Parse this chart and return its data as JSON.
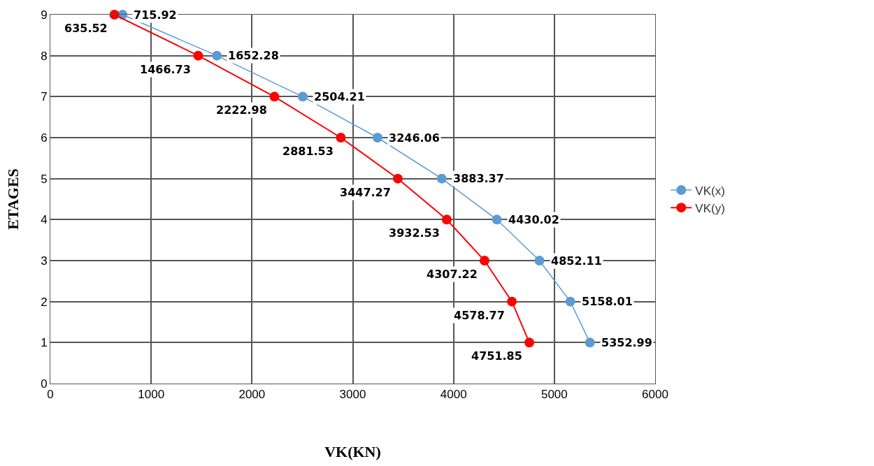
{
  "chart_data": {
    "type": "line",
    "orientation": "horizontal",
    "xlabel": "VK(KN)",
    "ylabel": "ETAGES",
    "categories": [
      "9",
      "8",
      "7",
      "6",
      "5",
      "4",
      "3",
      "2",
      "1",
      "0"
    ],
    "series": [
      {
        "name": "VK(x)",
        "color": "#5b9bd5",
        "values": [
          715.92,
          1652.28,
          2504.21,
          3246.06,
          3883.37,
          4430.02,
          4852.11,
          5158.01,
          5352.99,
          null
        ]
      },
      {
        "name": "VK(y)",
        "color": "#ff0000",
        "values": [
          635.52,
          1466.73,
          2222.98,
          2881.53,
          3447.27,
          3932.53,
          4307.22,
          4578.77,
          4751.85,
          null
        ]
      }
    ],
    "xlim": [
      0,
      6000
    ],
    "xticks": [
      0,
      1000,
      2000,
      3000,
      4000,
      5000,
      6000
    ],
    "data_labels": true,
    "grid": true,
    "legend": "right",
    "marker": "circle",
    "line_style": "solid"
  }
}
